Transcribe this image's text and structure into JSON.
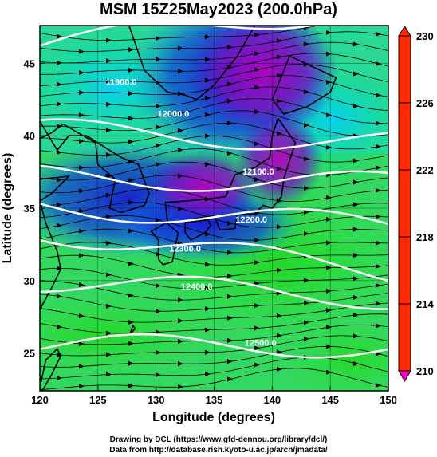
{
  "title": "MSM 15Z25May2023 (200.0hPa)",
  "x_axis": {
    "label": "Longitude (degrees)",
    "range": [
      120,
      150
    ],
    "ticks": [
      120,
      125,
      130,
      135,
      140,
      145,
      150
    ]
  },
  "y_axis": {
    "label": "Latitude  (degrees)",
    "range": [
      22.4,
      47.6
    ],
    "ticks": [
      25,
      30,
      35,
      40,
      45
    ]
  },
  "colorbar": {
    "range": [
      210,
      230
    ],
    "tick_labels": [
      "230",
      "226",
      "222",
      "218",
      "214",
      "210"
    ],
    "colors": [
      "#ff2a00",
      "#ff8800",
      "#e8e000",
      "#a6f000",
      "#2de02d",
      "#00e6a0",
      "#00c8ff",
      "#0a50e6",
      "#1e10c8",
      "#8000b0",
      "#d000c8"
    ]
  },
  "contours": [
    {
      "label": "11900.0",
      "lat_w": 46.2,
      "lat_e": 49.0,
      "label_lon": 127,
      "label_lat": 43.5
    },
    {
      "label": "12000.0",
      "lat_w": 40.4,
      "lat_e": 39.5,
      "label_lon": 131.5,
      "label_lat": 41.3
    },
    {
      "label": "12100.0",
      "lat_w": 37.2,
      "lat_e": 36.7,
      "label_lon": 138.8,
      "label_lat": 37.3
    },
    {
      "label": "12200.0",
      "lat_w": 35.2,
      "lat_e": 33.8,
      "label_lon": 138.2,
      "label_lat": 34.0
    },
    {
      "label": "12300.0",
      "lat_w": 33.4,
      "lat_e": 30.6,
      "label_lon": 132.5,
      "label_lat": 32.0
    },
    {
      "label": "12400.0",
      "lat_w": 30.0,
      "lat_e": 28.8,
      "label_lon": 133.5,
      "label_lat": 29.4
    },
    {
      "label": "12500.0",
      "lat_w": 25.5,
      "lat_e": 25.5,
      "label_lon": 139.0,
      "label_lat": 25.5
    }
  ],
  "credits": [
    "Drawing by DCL (https://www.gfd-dennou.org/library/dcl/)",
    "Data from http://database.rish.kyoto-u.ac.jp/arch/jmadata/"
  ]
}
